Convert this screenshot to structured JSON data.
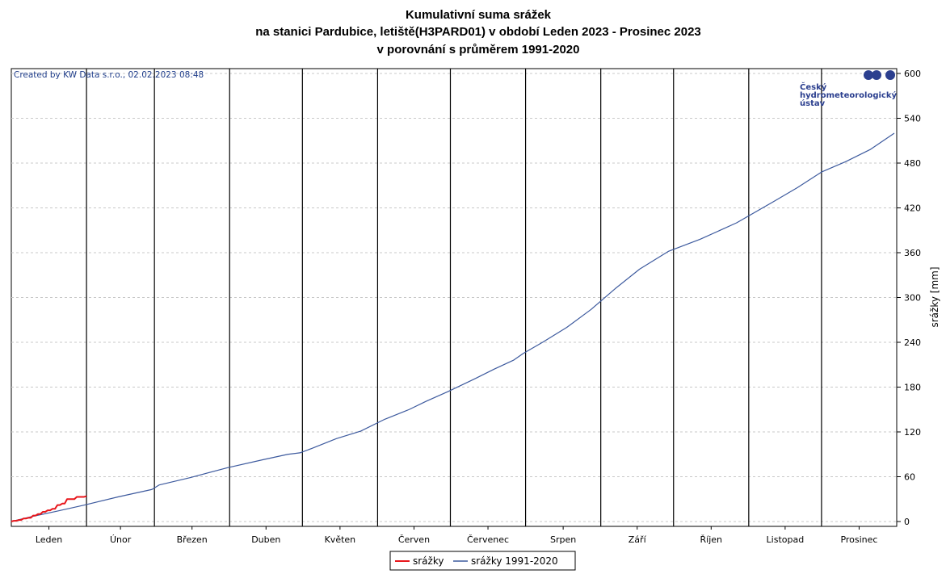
{
  "chart_data": {
    "type": "line",
    "title_lines": [
      "Kumulativní suma srážek",
      "na stanici Pardubice, letiště(H3PARD01) v období Leden 2023 - Prosinec 2023",
      "v porovnání s průměrem 1991-2020"
    ],
    "credit": "Created by KW Data s.r.o., 02.02.2023 08:48",
    "logo_lines": [
      "Český",
      "hydrometeorologický",
      "ústav"
    ],
    "ylabel": "srážky [mm]",
    "ylim": [
      0,
      600
    ],
    "yticks": [
      0,
      60,
      120,
      180,
      240,
      300,
      360,
      420,
      480,
      540,
      600
    ],
    "y_axis_side": "right",
    "grid": "horizontal dashed",
    "months": [
      "Leden",
      "Únor",
      "Březen",
      "Duben",
      "Květen",
      "Červen",
      "Červenec",
      "Srpen",
      "Září",
      "Říjen",
      "Listopad",
      "Prosinec"
    ],
    "x_unit": "day of year",
    "xlim": [
      1,
      365
    ],
    "legend_position": "bottom-center",
    "series": [
      {
        "name": "srážky",
        "color": "#e8161b",
        "points": [
          [
            1,
            0
          ],
          [
            2,
            1
          ],
          [
            3,
            1
          ],
          [
            4,
            2
          ],
          [
            5,
            2
          ],
          [
            6,
            4
          ],
          [
            7,
            4
          ],
          [
            8,
            5
          ],
          [
            9,
            5
          ],
          [
            10,
            8
          ],
          [
            11,
            8
          ],
          [
            12,
            10
          ],
          [
            13,
            10
          ],
          [
            14,
            13
          ],
          [
            15,
            13
          ],
          [
            16,
            15
          ],
          [
            17,
            15
          ],
          [
            18,
            17
          ],
          [
            19,
            17
          ],
          [
            20,
            22
          ],
          [
            21,
            22
          ],
          [
            22,
            24
          ],
          [
            23,
            24
          ],
          [
            24,
            30
          ],
          [
            25,
            30
          ],
          [
            26,
            30
          ],
          [
            27,
            30
          ],
          [
            28,
            33
          ],
          [
            29,
            33
          ],
          [
            30,
            33
          ],
          [
            31,
            33
          ],
          [
            32,
            34
          ]
        ]
      },
      {
        "name": "srážky 1991-2020",
        "color": "#3d5a9e",
        "points": [
          [
            1,
            0
          ],
          [
            10,
            7
          ],
          [
            20,
            14
          ],
          [
            31,
            22
          ],
          [
            45,
            33
          ],
          [
            59,
            43
          ],
          [
            62,
            49
          ],
          [
            75,
            59
          ],
          [
            90,
            72
          ],
          [
            105,
            83
          ],
          [
            115,
            90
          ],
          [
            120,
            92
          ],
          [
            125,
            98
          ],
          [
            135,
            111
          ],
          [
            145,
            121
          ],
          [
            155,
            137
          ],
          [
            165,
            150
          ],
          [
            172,
            161
          ],
          [
            181,
            174
          ],
          [
            192,
            191
          ],
          [
            200,
            204
          ],
          [
            208,
            216
          ],
          [
            212,
            225
          ],
          [
            220,
            240
          ],
          [
            230,
            260
          ],
          [
            240,
            284
          ],
          [
            250,
            312
          ],
          [
            260,
            338
          ],
          [
            272,
            362
          ],
          [
            285,
            378
          ],
          [
            300,
            400
          ],
          [
            315,
            428
          ],
          [
            325,
            447
          ],
          [
            335,
            468
          ],
          [
            345,
            482
          ],
          [
            355,
            498
          ],
          [
            365,
            520
          ]
        ]
      }
    ]
  }
}
